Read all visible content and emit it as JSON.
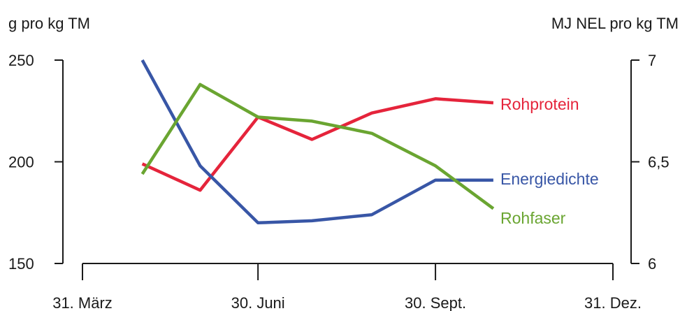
{
  "chart_data": {
    "type": "line",
    "y_left_label": "g pro kg TM",
    "y_right_label": "MJ NEL pro kg TM",
    "y_left_range": [
      150,
      250
    ],
    "y_right_range": [
      6,
      7
    ],
    "y_left_ticks": [
      {
        "value": 150,
        "label": "150"
      },
      {
        "value": 200,
        "label": "200"
      },
      {
        "value": 250,
        "label": "250"
      }
    ],
    "y_right_ticks": [
      {
        "value": 6,
        "label": "6"
      },
      {
        "value": 6.5,
        "label": "6,5"
      },
      {
        "value": 7,
        "label": "7"
      }
    ],
    "x_range": [
      "2023-03-31",
      "2023-12-31"
    ],
    "x_ticks": [
      {
        "value": "2023-03-31",
        "label": "31. März"
      },
      {
        "value": "2023-06-30",
        "label": "30. Juni"
      },
      {
        "value": "2023-09-30",
        "label": "30. Sept."
      },
      {
        "value": "2023-12-31",
        "label": "31. Dez."
      }
    ],
    "grid": false,
    "series": [
      {
        "name": "Rohprotein",
        "axis": "left",
        "color": "#e5243b",
        "points": [
          {
            "x": "2023-05-01",
            "y": 199
          },
          {
            "x": "2023-05-31",
            "y": 186
          },
          {
            "x": "2023-06-30",
            "y": 222
          },
          {
            "x": "2023-07-28",
            "y": 211
          },
          {
            "x": "2023-08-28",
            "y": 224
          },
          {
            "x": "2023-09-30",
            "y": 231
          },
          {
            "x": "2023-10-30",
            "y": 229
          }
        ]
      },
      {
        "name": "Energiedichte",
        "axis": "right",
        "color": "#3856a6",
        "points": [
          {
            "x": "2023-05-01",
            "y": 7.0
          },
          {
            "x": "2023-05-31",
            "y": 6.48
          },
          {
            "x": "2023-06-30",
            "y": 6.2
          },
          {
            "x": "2023-07-28",
            "y": 6.21
          },
          {
            "x": "2023-08-28",
            "y": 6.24
          },
          {
            "x": "2023-09-30",
            "y": 6.41
          },
          {
            "x": "2023-10-30",
            "y": 6.41
          }
        ]
      },
      {
        "name": "Rohfaser",
        "axis": "left",
        "color": "#6aa531",
        "points": [
          {
            "x": "2023-05-01",
            "y": 194
          },
          {
            "x": "2023-05-31",
            "y": 238
          },
          {
            "x": "2023-06-30",
            "y": 222
          },
          {
            "x": "2023-07-28",
            "y": 220
          },
          {
            "x": "2023-08-28",
            "y": 214
          },
          {
            "x": "2023-09-30",
            "y": 198
          },
          {
            "x": "2023-10-30",
            "y": 177
          }
        ]
      }
    ]
  }
}
